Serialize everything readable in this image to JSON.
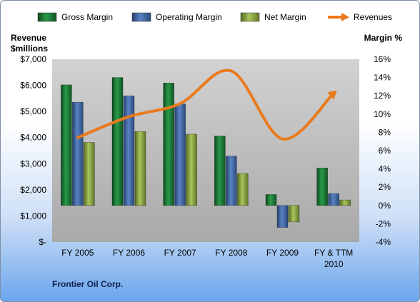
{
  "chart_data": {
    "type": "bar",
    "categories": [
      "FY 2005",
      "FY 2006",
      "FY 2007",
      "FY 2008",
      "FY 2009",
      "FY & TTM|2010"
    ],
    "series": [
      {
        "name": "Gross Margin",
        "axis": "right",
        "values": [
          13.2,
          14.0,
          13.4,
          7.6,
          1.2,
          4.1
        ]
      },
      {
        "name": "Operating Margin",
        "axis": "right",
        "values": [
          11.3,
          12.0,
          11.1,
          5.4,
          -2.4,
          1.3
        ]
      },
      {
        "name": "Net Margin",
        "axis": "right",
        "values": [
          6.9,
          8.1,
          7.8,
          3.5,
          -1.8,
          0.6
        ]
      },
      {
        "name": "Revenues",
        "type": "line",
        "axis": "left",
        "values": [
          4000,
          4800,
          5300,
          6550,
          3950,
          5700
        ]
      }
    ],
    "left_axis": {
      "title_line1": "Revenue",
      "title_line2": "$millions",
      "ylim": [
        0,
        7000
      ],
      "ticks": [
        0,
        1000,
        2000,
        3000,
        4000,
        5000,
        6000,
        7000
      ],
      "tick_labels": [
        "$-",
        "$1,000",
        "$2,000",
        "$3,000",
        "$4,000",
        "$5,000",
        "$6,000",
        "$7,000"
      ]
    },
    "right_axis": {
      "title": "Margin  %",
      "ylim": [
        -4,
        16
      ],
      "ticks": [
        -4,
        -2,
        0,
        2,
        4,
        6,
        8,
        10,
        12,
        14,
        16
      ],
      "tick_labels": [
        "-4%",
        "-2%",
        "0%",
        "2%",
        "4%",
        "6%",
        "8%",
        "10%",
        "12%",
        "14%",
        "16%"
      ]
    },
    "legend_position": "top",
    "grid": false,
    "colors": {
      "Gross Margin": "#1f7a3a",
      "Operating Margin": "#3f67a8",
      "Net Margin": "#8aa640",
      "Revenues": "#ea7a1c",
      "plot_background": "#c0c0c0"
    }
  },
  "footer": {
    "company": "Frontier Oil Corp."
  }
}
